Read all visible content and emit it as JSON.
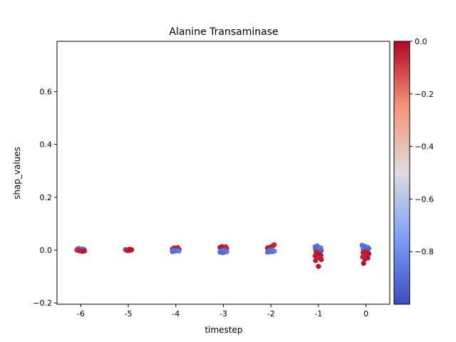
{
  "chart_data": {
    "type": "scatter",
    "title": "Alanine Transaminase",
    "xlabel": "timestep",
    "ylabel": "shap_values",
    "xlim": [
      -6.5,
      0.5
    ],
    "ylim": [
      -0.205,
      0.79
    ],
    "x_ticks": [
      -6,
      -5,
      -4,
      -3,
      -2,
      -1,
      0
    ],
    "x_tick_labels": [
      "-6",
      "-5",
      "-4",
      "-3",
      "-2",
      "-1",
      "0"
    ],
    "y_ticks": [
      -0.2,
      0.0,
      0.2,
      0.4,
      0.6
    ],
    "y_tick_labels": [
      "−0.2",
      "0.0",
      "0.2",
      "0.4",
      "0.6"
    ],
    "grid": false,
    "colorbar": {
      "cmap": "coolwarm",
      "min": -1.0,
      "max": 0.0,
      "ticks": [
        0.0,
        -0.2,
        -0.4,
        -0.6,
        -0.8
      ],
      "tick_labels": [
        "0.0",
        "−0.2",
        "−0.4",
        "−0.6",
        "−0.8"
      ]
    },
    "points": [
      {
        "x": -6.07,
        "y": 0.004,
        "c": -0.9
      },
      {
        "x": -6.04,
        "y": 0.006,
        "c": -0.88
      },
      {
        "x": -6.0,
        "y": 0.002,
        "c": -0.92
      },
      {
        "x": -5.96,
        "y": 0.004,
        "c": -0.85
      },
      {
        "x": -5.93,
        "y": 0.002,
        "c": -0.9
      },
      {
        "x": -6.05,
        "y": -0.002,
        "c": -0.86
      },
      {
        "x": -5.98,
        "y": 0.0,
        "c": -0.9
      },
      {
        "x": -5.92,
        "y": -0.003,
        "c": -0.05
      },
      {
        "x": -6.02,
        "y": -0.003,
        "c": -0.04
      },
      {
        "x": -5.96,
        "y": -0.005,
        "c": -0.02
      },
      {
        "x": -6.08,
        "y": 0.0,
        "c": -0.06
      },
      {
        "x": -5.06,
        "y": 0.002,
        "c": -0.9
      },
      {
        "x": -5.02,
        "y": 0.0,
        "c": -0.88
      },
      {
        "x": -4.98,
        "y": 0.002,
        "c": -0.92
      },
      {
        "x": -4.95,
        "y": -0.001,
        "c": -0.9
      },
      {
        "x": -5.0,
        "y": -0.002,
        "c": -0.04
      },
      {
        "x": -4.93,
        "y": 0.001,
        "c": -0.03
      },
      {
        "x": -5.04,
        "y": -0.001,
        "c": -0.05
      },
      {
        "x": -4.97,
        "y": 0.003,
        "c": -0.02
      },
      {
        "x": -4.07,
        "y": 0.004,
        "c": -0.03
      },
      {
        "x": -4.04,
        "y": 0.008,
        "c": -0.05
      },
      {
        "x": -4.0,
        "y": 0.006,
        "c": -0.02
      },
      {
        "x": -3.96,
        "y": 0.009,
        "c": -0.04
      },
      {
        "x": -3.93,
        "y": 0.002,
        "c": -0.06
      },
      {
        "x": -4.07,
        "y": -0.006,
        "c": -0.9
      },
      {
        "x": -4.02,
        "y": -0.004,
        "c": -0.88
      },
      {
        "x": -3.98,
        "y": -0.002,
        "c": -0.92
      },
      {
        "x": -3.94,
        "y": -0.004,
        "c": -0.86
      },
      {
        "x": -4.05,
        "y": 0.0,
        "c": -0.9
      },
      {
        "x": -3.07,
        "y": 0.01,
        "c": -0.03
      },
      {
        "x": -3.03,
        "y": 0.013,
        "c": -0.05
      },
      {
        "x": -2.99,
        "y": 0.008,
        "c": -0.02
      },
      {
        "x": -2.95,
        "y": 0.012,
        "c": -0.04
      },
      {
        "x": -2.93,
        "y": 0.006,
        "c": -0.06
      },
      {
        "x": -3.05,
        "y": 0.004,
        "c": -0.03
      },
      {
        "x": -3.07,
        "y": -0.008,
        "c": -0.9
      },
      {
        "x": -3.02,
        "y": -0.01,
        "c": -0.88
      },
      {
        "x": -2.97,
        "y": -0.008,
        "c": -0.92
      },
      {
        "x": -2.93,
        "y": -0.006,
        "c": -0.86
      },
      {
        "x": -3.05,
        "y": -0.003,
        "c": -0.9
      },
      {
        "x": -2.99,
        "y": 0.0,
        "c": -0.88
      },
      {
        "x": -2.07,
        "y": 0.008,
        "c": -0.03
      },
      {
        "x": -2.03,
        "y": 0.01,
        "c": -0.05
      },
      {
        "x": -1.99,
        "y": 0.012,
        "c": -0.02
      },
      {
        "x": -1.96,
        "y": 0.016,
        "c": -0.04
      },
      {
        "x": -1.93,
        "y": 0.02,
        "c": -0.06
      },
      {
        "x": -2.05,
        "y": 0.004,
        "c": -0.03
      },
      {
        "x": -2.07,
        "y": -0.008,
        "c": -0.9
      },
      {
        "x": -2.02,
        "y": -0.006,
        "c": -0.88
      },
      {
        "x": -1.97,
        "y": -0.006,
        "c": -0.92
      },
      {
        "x": -1.93,
        "y": -0.004,
        "c": -0.86
      },
      {
        "x": -2.04,
        "y": -0.002,
        "c": -0.9
      },
      {
        "x": -1.99,
        "y": 0.0,
        "c": -0.88
      },
      {
        "x": -1.07,
        "y": 0.012,
        "c": -0.9
      },
      {
        "x": -1.03,
        "y": 0.016,
        "c": -0.88
      },
      {
        "x": -0.99,
        "y": 0.01,
        "c": -0.92
      },
      {
        "x": -0.95,
        "y": 0.008,
        "c": -0.86
      },
      {
        "x": -1.06,
        "y": 0.004,
        "c": -0.9
      },
      {
        "x": -1.0,
        "y": 0.0,
        "c": -0.88
      },
      {
        "x": -0.94,
        "y": -0.002,
        "c": -0.92
      },
      {
        "x": -1.05,
        "y": -0.006,
        "c": -0.05
      },
      {
        "x": -1.02,
        "y": -0.012,
        "c": -0.04
      },
      {
        "x": -0.98,
        "y": -0.016,
        "c": -0.03
      },
      {
        "x": -0.95,
        "y": -0.02,
        "c": -0.02
      },
      {
        "x": -1.07,
        "y": -0.022,
        "c": -0.05
      },
      {
        "x": -1.03,
        "y": -0.028,
        "c": -0.04
      },
      {
        "x": -0.97,
        "y": -0.03,
        "c": -0.06
      },
      {
        "x": -0.94,
        "y": -0.036,
        "c": -0.03
      },
      {
        "x": -1.06,
        "y": -0.04,
        "c": -0.04
      },
      {
        "x": -1.0,
        "y": -0.062,
        "c": -0.02
      },
      {
        "x": -0.08,
        "y": 0.018,
        "c": -0.9
      },
      {
        "x": -0.04,
        "y": 0.014,
        "c": -0.88
      },
      {
        "x": 0.0,
        "y": 0.012,
        "c": -0.92
      },
      {
        "x": 0.04,
        "y": 0.01,
        "c": -0.86
      },
      {
        "x": 0.06,
        "y": 0.006,
        "c": -0.9
      },
      {
        "x": -0.06,
        "y": 0.004,
        "c": -0.88
      },
      {
        "x": 0.02,
        "y": 0.002,
        "c": -0.92
      },
      {
        "x": -0.02,
        "y": -0.006,
        "c": -0.05
      },
      {
        "x": 0.03,
        "y": -0.008,
        "c": -0.04
      },
      {
        "x": -0.06,
        "y": -0.01,
        "c": -0.03
      },
      {
        "x": 0.06,
        "y": -0.014,
        "c": -0.02
      },
      {
        "x": -0.04,
        "y": -0.018,
        "c": -0.05
      },
      {
        "x": 0.01,
        "y": -0.022,
        "c": -0.04
      },
      {
        "x": -0.07,
        "y": -0.026,
        "c": -0.06
      },
      {
        "x": 0.04,
        "y": -0.03,
        "c": -0.03
      },
      {
        "x": -0.02,
        "y": -0.034,
        "c": -0.04
      },
      {
        "x": -0.05,
        "y": -0.05,
        "c": -0.02
      }
    ]
  }
}
